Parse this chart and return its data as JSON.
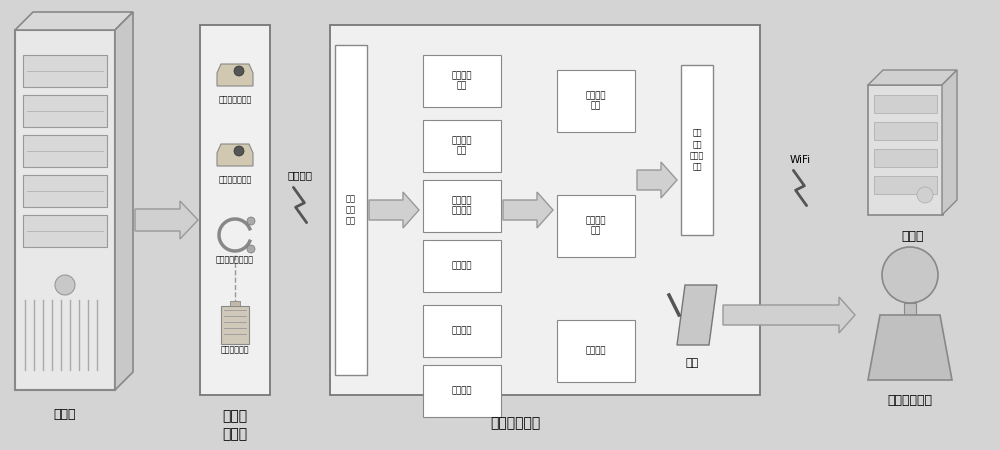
{
  "bg_color": "#d4d4d4",
  "switch_cabinet_label": "开关柜",
  "signal_collect_label": "信号采\n集单元",
  "data_process_label": "数据处理单元",
  "bluetooth_label": "蓝牙通信",
  "wifi_label": "WiFi",
  "display_label": "显示",
  "server_label": "服务器",
  "inspector_label": "现场巡检人员",
  "sensor_units": [
    "超声波检测单元",
    "地电波检测单元",
    "高频电流检测单元",
    "环境检测单元"
  ],
  "analysis_boxes": [
    "历史趋势\n分析",
    "叠加比较\n分析",
    "区域布局\n统计分析",
    "时频分析",
    "相位分析",
    "能量分析"
  ],
  "mid_boxes": [
    "判断设备\n状态",
    "异常状态\n定位",
    "分类分离"
  ],
  "discharge_retrieve": "局放\n数据\n提取",
  "discharge_encrypt": "局放\n数据\n加密、\n打包"
}
